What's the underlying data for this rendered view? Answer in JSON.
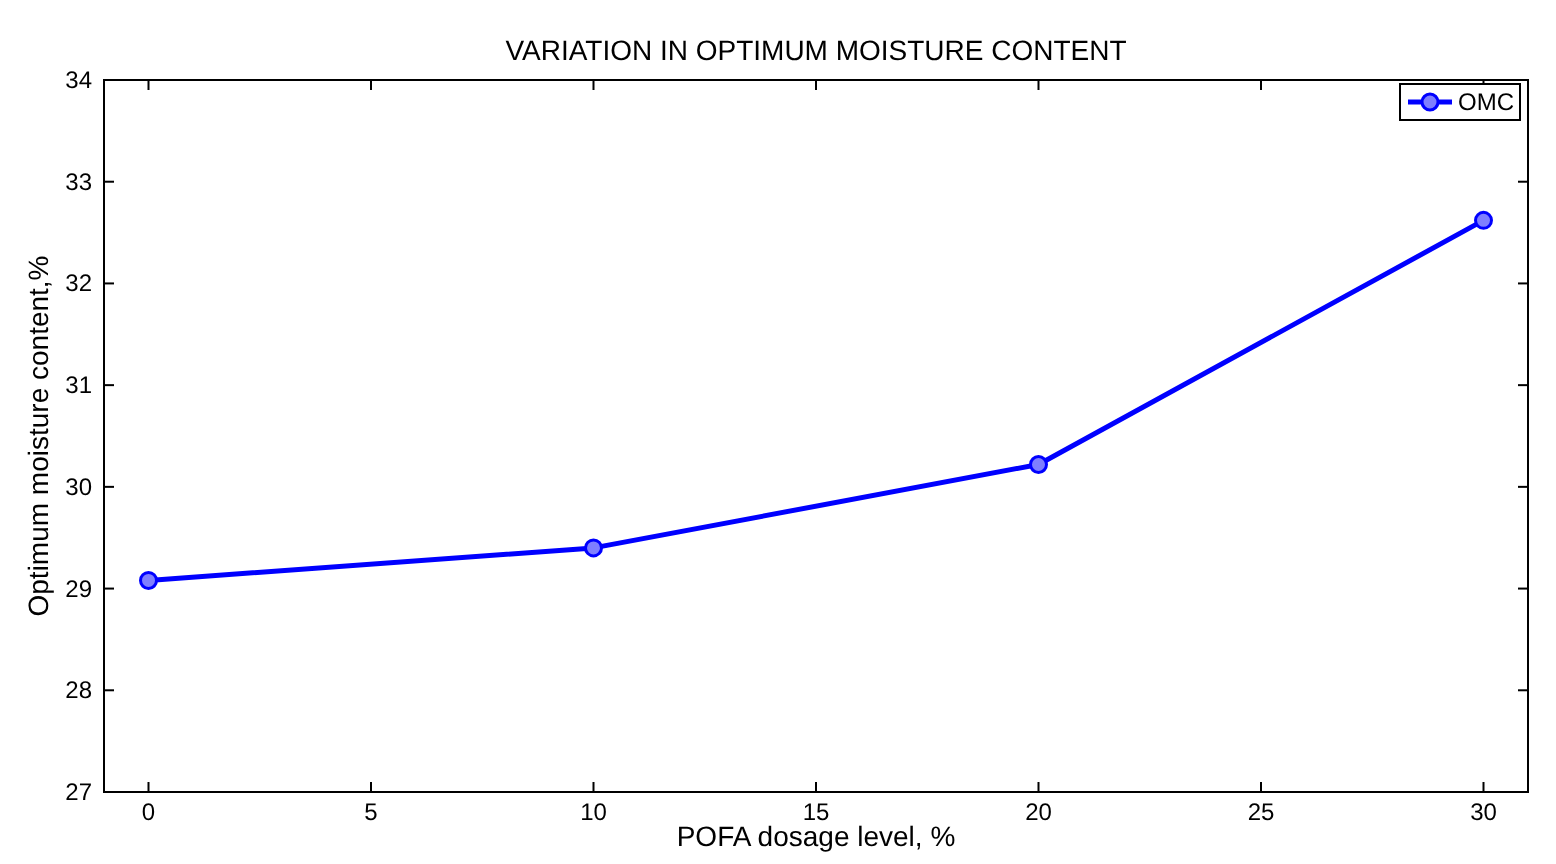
{
  "chart_data": {
    "type": "line",
    "title": "VARIATION IN OPTIMUM MOISTURE CONTENT",
    "xlabel": "POFA dosage level, %",
    "ylabel": "Optimum moisture content,%",
    "x": [
      0,
      10,
      20,
      30
    ],
    "series": [
      {
        "name": "OMC",
        "color": "#0000ff",
        "values": [
          29.08,
          29.4,
          30.22,
          32.62
        ]
      }
    ],
    "xlim": [
      -1,
      31
    ],
    "xticks": [
      0,
      5,
      10,
      15,
      20,
      25,
      30
    ],
    "ylim": [
      27,
      34
    ],
    "yticks": [
      27,
      28,
      29,
      30,
      31,
      32,
      33,
      34
    ],
    "marker": "circle",
    "line_style": "solid",
    "legend": "top right",
    "grid": false
  }
}
